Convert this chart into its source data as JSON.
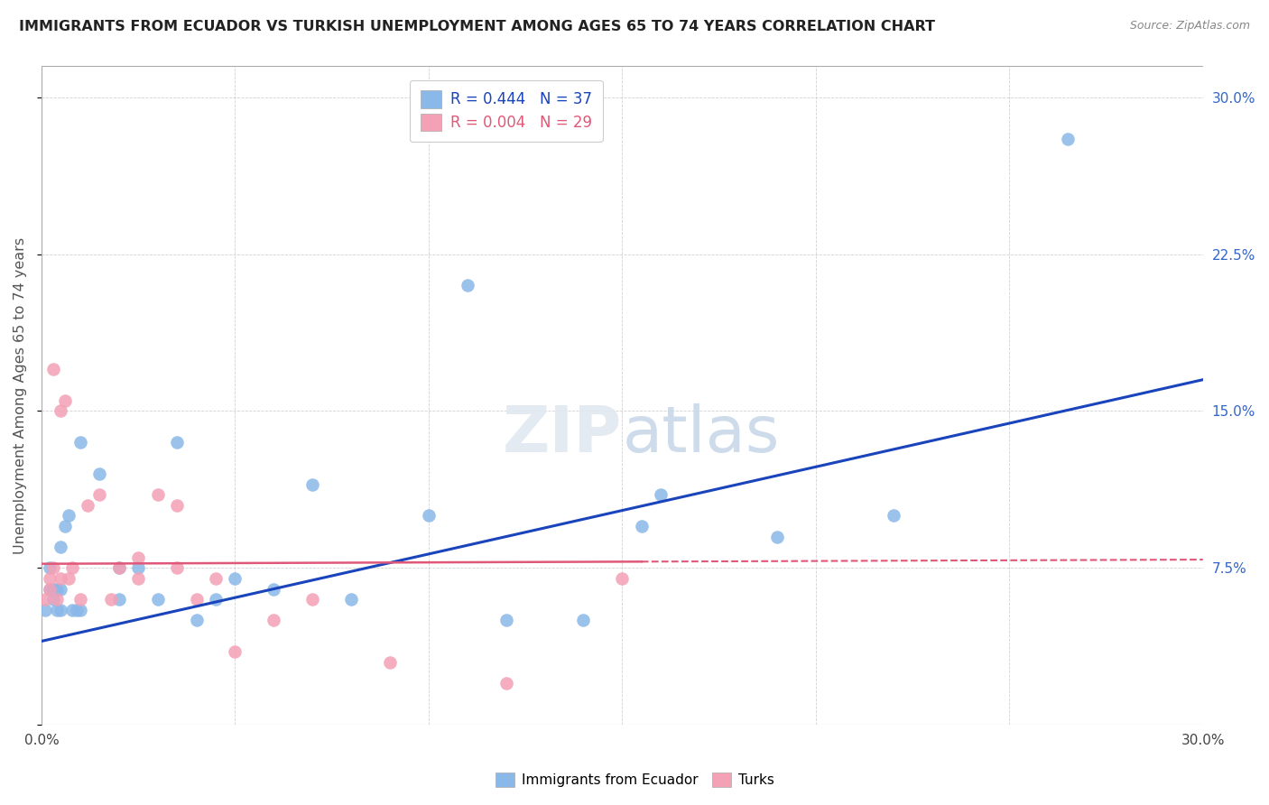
{
  "title": "IMMIGRANTS FROM ECUADOR VS TURKISH UNEMPLOYMENT AMONG AGES 65 TO 74 YEARS CORRELATION CHART",
  "source": "Source: ZipAtlas.com",
  "ylabel": "Unemployment Among Ages 65 to 74 years",
  "xlim": [
    0,
    0.3
  ],
  "ylim": [
    0,
    0.315
  ],
  "yticks_right": [
    0.0,
    0.075,
    0.15,
    0.225,
    0.3
  ],
  "ytick_labels_right": [
    "",
    "7.5%",
    "15.0%",
    "22.5%",
    "30.0%"
  ],
  "xticks": [
    0.0,
    0.05,
    0.1,
    0.15,
    0.2,
    0.25,
    0.3
  ],
  "xtick_labels": [
    "0.0%",
    "",
    "",
    "",
    "",
    "",
    "30.0%"
  ],
  "legend_ecuador": "Immigrants from Ecuador",
  "legend_turks": "Turks",
  "R_ecuador": 0.444,
  "N_ecuador": 37,
  "R_turks": 0.004,
  "N_turks": 29,
  "color_ecuador": "#8ab8e8",
  "color_turks": "#f4a0b5",
  "color_line_ecuador": "#1a44bb",
  "color_line_turks": "#e05878",
  "ecuador_x": [
    0.001,
    0.002,
    0.002,
    0.003,
    0.003,
    0.004,
    0.004,
    0.005,
    0.005,
    0.005,
    0.006,
    0.007,
    0.008,
    0.009,
    0.01,
    0.01,
    0.015,
    0.02,
    0.02,
    0.025,
    0.03,
    0.035,
    0.04,
    0.045,
    0.05,
    0.06,
    0.07,
    0.08,
    0.1,
    0.12,
    0.14,
    0.16,
    0.19,
    0.22,
    0.265,
    0.155,
    0.11
  ],
  "ecuador_y": [
    0.055,
    0.065,
    0.075,
    0.06,
    0.065,
    0.055,
    0.065,
    0.055,
    0.065,
    0.085,
    0.095,
    0.1,
    0.055,
    0.055,
    0.135,
    0.055,
    0.12,
    0.06,
    0.075,
    0.075,
    0.06,
    0.135,
    0.05,
    0.06,
    0.07,
    0.065,
    0.115,
    0.06,
    0.1,
    0.05,
    0.05,
    0.11,
    0.09,
    0.1,
    0.28,
    0.095,
    0.21
  ],
  "turks_x": [
    0.001,
    0.002,
    0.002,
    0.003,
    0.003,
    0.004,
    0.005,
    0.005,
    0.006,
    0.007,
    0.008,
    0.01,
    0.012,
    0.015,
    0.018,
    0.02,
    0.025,
    0.03,
    0.035,
    0.04,
    0.045,
    0.05,
    0.06,
    0.07,
    0.09,
    0.12,
    0.15,
    0.035,
    0.025
  ],
  "turks_y": [
    0.06,
    0.065,
    0.07,
    0.075,
    0.17,
    0.06,
    0.07,
    0.15,
    0.155,
    0.07,
    0.075,
    0.06,
    0.105,
    0.11,
    0.06,
    0.075,
    0.07,
    0.11,
    0.105,
    0.06,
    0.07,
    0.035,
    0.05,
    0.06,
    0.03,
    0.02,
    0.07,
    0.075,
    0.08
  ],
  "line_ec_x0": 0.0,
  "line_ec_y0": 0.04,
  "line_ec_x1": 0.3,
  "line_ec_y1": 0.165,
  "line_turks_x0": 0.0,
  "line_turks_y0": 0.077,
  "line_turks_x1": 0.3,
  "line_turks_y1": 0.079,
  "line_turks_solid_end": 0.155
}
